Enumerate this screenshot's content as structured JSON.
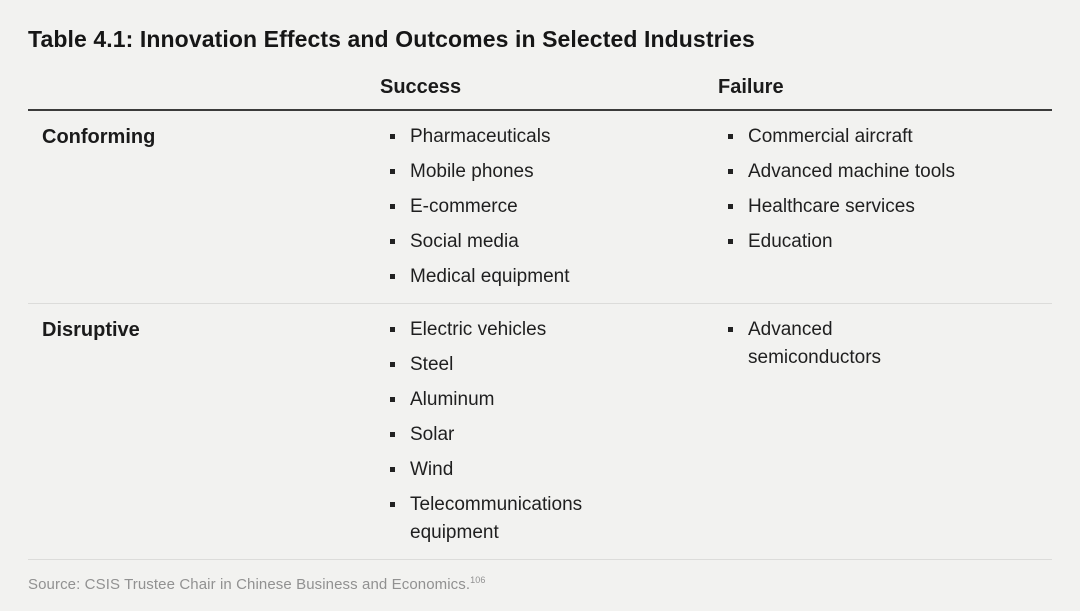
{
  "colors": {
    "background": "#f2f2f0",
    "text": "#1b1b1b",
    "rule_dark": "#3b3b3b",
    "rule_light": "#dcdcda",
    "bullet": "#222222",
    "source_text": "#919191"
  },
  "chart_data": {
    "type": "table",
    "title": "Table 4.1: Innovation Effects and Outcomes in Selected Industries",
    "column_headers": [
      "",
      "Success",
      "Failure"
    ],
    "rows": [
      {
        "label": "Conforming",
        "success": [
          "Pharmaceuticals",
          "Mobile phones",
          "E-commerce",
          "Social media",
          "Medical equipment"
        ],
        "failure": [
          "Commercial aircraft",
          "Advanced machine tools",
          "Healthcare services",
          "Education"
        ]
      },
      {
        "label": "Disruptive",
        "success": [
          "Electric vehicles",
          "Steel",
          "Aluminum",
          "Solar",
          "Wind",
          "Telecommunications equipment"
        ],
        "failure": [
          "Advanced semiconductors"
        ]
      }
    ],
    "source_text": "Source: CSIS Trustee Chair in Chinese Business and Economics.",
    "footnote_number": "106",
    "layout": {
      "grid": "off",
      "legend": "none"
    }
  }
}
